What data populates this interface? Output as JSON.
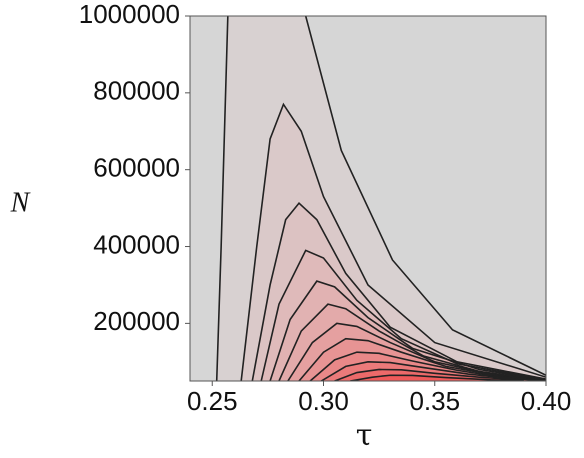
{
  "chart_data": {
    "type": "contour",
    "x_label": "τ",
    "y_label": "N",
    "xlim": [
      0.24,
      0.4
    ],
    "ylim": [
      50000,
      1000000
    ],
    "xticks": [
      {
        "value": 0.25,
        "label": "0.25"
      },
      {
        "value": 0.3,
        "label": "0.30"
      },
      {
        "value": 0.35,
        "label": "0.35"
      },
      {
        "value": 0.4,
        "label": "0.40"
      }
    ],
    "yticks": [
      200000,
      400000,
      600000,
      800000,
      1000000
    ],
    "background": "#d6d6d6",
    "series": [
      {
        "color": "#222222",
        "fill": "#d8d1d1",
        "x": [
          0.252,
          0.254,
          0.257,
          null,
          0.292,
          0.308,
          0.331,
          0.358,
          0.4
        ],
        "y": [
          50000,
          400000,
          1000000,
          null,
          1000000,
          650000,
          365000,
          183000,
          65000
        ]
      },
      {
        "color": "#222222",
        "fill": "#dac9c9",
        "x": [
          0.263,
          0.27,
          0.276,
          0.282,
          0.29,
          0.3,
          0.32,
          0.35,
          0.4
        ],
        "y": [
          50000,
          400000,
          680000,
          770000,
          700000,
          530000,
          300000,
          150000,
          60000
        ]
      },
      {
        "color": "#222222",
        "fill": "#dcc2c2",
        "x": [
          0.268,
          0.276,
          0.283,
          0.289,
          0.297,
          0.31,
          0.33,
          0.36,
          0.4
        ],
        "y": [
          50000,
          300000,
          470000,
          513000,
          470000,
          330000,
          190000,
          100000,
          55000
        ]
      },
      {
        "color": "#222222",
        "fill": "#dfbaba",
        "x": [
          0.272,
          0.28,
          0.292,
          0.3,
          0.315,
          0.335,
          0.36,
          0.4
        ],
        "y": [
          50000,
          250000,
          390000,
          370000,
          260000,
          160000,
          95000,
          53000
        ]
      },
      {
        "color": "#222222",
        "fill": "#e1b2b2",
        "x": [
          0.276,
          0.285,
          0.297,
          0.305,
          0.32,
          0.34,
          0.37,
          0.4
        ],
        "y": [
          50000,
          210000,
          310000,
          295000,
          215000,
          135000,
          80000,
          52000
        ]
      },
      {
        "color": "#222222",
        "fill": "#e3aaaa",
        "x": [
          0.28,
          0.29,
          0.302,
          0.31,
          0.325,
          0.345,
          0.37,
          0.4
        ],
        "y": [
          50000,
          180000,
          250000,
          238000,
          180000,
          115000,
          75000,
          51000
        ]
      },
      {
        "color": "#222222",
        "fill": "#e5a0a0",
        "x": [
          0.284,
          0.295,
          0.306,
          0.315,
          0.33,
          0.35,
          0.375,
          0.4
        ],
        "y": [
          50000,
          150000,
          200000,
          192000,
          150000,
          100000,
          68000,
          51000
        ]
      },
      {
        "color": "#222222",
        "fill": "#e79494",
        "x": [
          0.289,
          0.3,
          0.31,
          0.32,
          0.335,
          0.355,
          0.38,
          0.4
        ],
        "y": [
          50000,
          125000,
          160000,
          155000,
          125000,
          88000,
          62000,
          51000
        ]
      },
      {
        "color": "#222222",
        "fill": "#e98888",
        "x": [
          0.294,
          0.305,
          0.315,
          0.325,
          0.34,
          0.36,
          0.38,
          0.4
        ],
        "y": [
          50000,
          105000,
          125000,
          122000,
          102000,
          78000,
          60000,
          50500
        ]
      },
      {
        "color": "#222222",
        "fill": "#eb7a7a",
        "x": [
          0.299,
          0.31,
          0.32,
          0.33,
          0.345,
          0.365,
          0.385,
          0.4
        ],
        "y": [
          50000,
          88000,
          100000,
          98000,
          85000,
          68000,
          56000,
          50500
        ]
      },
      {
        "color": "#222222",
        "fill": "#ed6a6a",
        "x": [
          0.305,
          0.315,
          0.325,
          0.335,
          0.35,
          0.37,
          0.39
        ],
        "y": [
          50000,
          72000,
          80000,
          79000,
          70000,
          60000,
          52000
        ]
      },
      {
        "color": "#222222",
        "fill": "#ef5a5a",
        "x": [
          0.312,
          0.322,
          0.33,
          0.34,
          0.355,
          0.375,
          0.39
        ],
        "y": [
          50000,
          60000,
          65000,
          64500,
          59000,
          53000,
          50500
        ]
      }
    ]
  }
}
